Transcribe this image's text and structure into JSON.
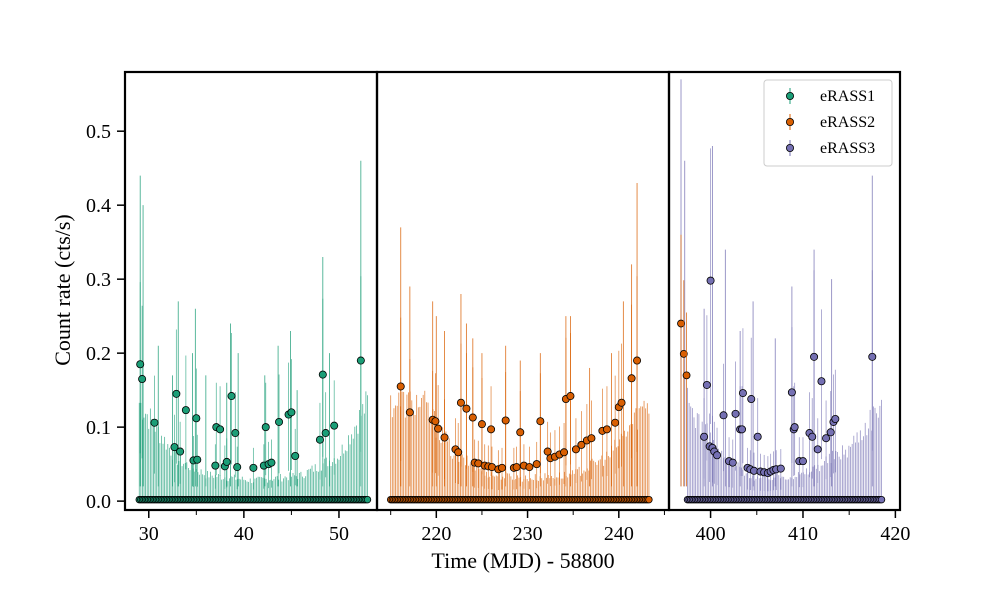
{
  "chart_data": {
    "type": "scatter",
    "title": "",
    "xlabel": "Time (MJD) - 58800",
    "ylabel": "Count rate (cts/s)",
    "ylim": [
      -0.012,
      0.58
    ],
    "y_ticks": [
      0.0,
      0.1,
      0.2,
      0.3,
      0.4,
      0.5
    ],
    "y_tick_labels": [
      "0.0",
      "0.1",
      "0.2",
      "0.3",
      "0.4",
      "0.5"
    ],
    "legend_position": "top-right",
    "error_bars": true,
    "panels": [
      {
        "xlim": [
          27.5,
          54.0
        ],
        "x_ticks": [
          30,
          40,
          50
        ],
        "x_tick_labels": [
          "30",
          "40",
          "50"
        ],
        "series": "eRASS1"
      },
      {
        "xlim": [
          213.5,
          245.5
        ],
        "x_ticks": [
          220,
          230,
          240
        ],
        "x_tick_labels": [
          "220",
          "230",
          "240"
        ],
        "series": "eRASS2"
      },
      {
        "xlim": [
          395.5,
          420.5
        ],
        "x_ticks": [
          400,
          410,
          420
        ],
        "x_tick_labels": [
          "400",
          "410",
          "420"
        ],
        "series": "eRASS3"
      }
    ],
    "series": [
      {
        "name": "eRASS1",
        "color": "#1b9e77",
        "edge_color": "#000000",
        "t_start": 29.0,
        "t_end": 53.0,
        "n_points": 145,
        "points": [
          [
            29.1,
            0.185
          ],
          [
            29.3,
            0.165
          ],
          [
            30.6,
            0.106
          ],
          [
            32.7,
            0.073
          ],
          [
            32.9,
            0.145
          ],
          [
            33.3,
            0.067
          ],
          [
            33.9,
            0.123
          ],
          [
            34.7,
            0.055
          ],
          [
            35.0,
            0.112
          ],
          [
            35.1,
            0.056
          ],
          [
            37.0,
            0.048
          ],
          [
            37.1,
            0.1
          ],
          [
            37.5,
            0.097
          ],
          [
            38.0,
            0.047
          ],
          [
            38.2,
            0.053
          ],
          [
            38.7,
            0.142
          ],
          [
            39.1,
            0.092
          ],
          [
            39.3,
            0.046
          ],
          [
            41.0,
            0.045
          ],
          [
            42.1,
            0.048
          ],
          [
            42.3,
            0.1
          ],
          [
            42.6,
            0.05
          ],
          [
            42.9,
            0.052
          ],
          [
            43.7,
            0.107
          ],
          [
            44.7,
            0.117
          ],
          [
            45.0,
            0.12
          ],
          [
            45.4,
            0.061
          ],
          [
            48.0,
            0.083
          ],
          [
            48.3,
            0.171
          ],
          [
            48.6,
            0.092
          ],
          [
            49.5,
            0.102
          ],
          [
            52.3,
            0.19
          ]
        ],
        "error_top": [
          [
            29.1,
            0.44
          ],
          [
            29.4,
            0.4
          ],
          [
            31.0,
            0.21
          ],
          [
            32.5,
            0.17
          ],
          [
            33.1,
            0.27
          ],
          [
            34.6,
            0.2
          ],
          [
            34.9,
            0.26
          ],
          [
            36.0,
            0.17
          ],
          [
            38.2,
            0.16
          ],
          [
            38.6,
            0.24
          ],
          [
            39.4,
            0.2
          ],
          [
            42.2,
            0.17
          ],
          [
            43.6,
            0.21
          ],
          [
            44.9,
            0.23
          ],
          [
            45.6,
            0.15
          ],
          [
            48.3,
            0.33
          ],
          [
            49.0,
            0.2
          ],
          [
            52.3,
            0.46
          ]
        ],
        "floor_band": [
          [
            29.0,
            0.13
          ],
          [
            33.0,
            0.055
          ],
          [
            36.0,
            0.035
          ],
          [
            41.0,
            0.027
          ],
          [
            46.0,
            0.034
          ],
          [
            50.0,
            0.06
          ],
          [
            53.0,
            0.13
          ]
        ]
      },
      {
        "name": "eRASS2",
        "color": "#d95f02",
        "edge_color": "#000000",
        "t_start": 215.0,
        "t_end": 243.3,
        "n_points": 160,
        "points": [
          [
            216.1,
            0.155
          ],
          [
            217.1,
            0.12
          ],
          [
            219.6,
            0.11
          ],
          [
            219.9,
            0.108
          ],
          [
            220.2,
            0.098
          ],
          [
            220.9,
            0.086
          ],
          [
            222.1,
            0.07
          ],
          [
            222.4,
            0.066
          ],
          [
            222.7,
            0.133
          ],
          [
            223.3,
            0.125
          ],
          [
            224.0,
            0.113
          ],
          [
            224.2,
            0.052
          ],
          [
            224.6,
            0.051
          ],
          [
            225.0,
            0.104
          ],
          [
            225.3,
            0.048
          ],
          [
            225.7,
            0.047
          ],
          [
            226.0,
            0.097
          ],
          [
            226.1,
            0.046
          ],
          [
            226.8,
            0.043
          ],
          [
            227.2,
            0.045
          ],
          [
            227.6,
            0.109
          ],
          [
            228.5,
            0.045
          ],
          [
            228.8,
            0.046
          ],
          [
            229.2,
            0.093
          ],
          [
            229.6,
            0.048
          ],
          [
            230.2,
            0.046
          ],
          [
            231.0,
            0.05
          ],
          [
            231.4,
            0.108
          ],
          [
            232.2,
            0.067
          ],
          [
            232.5,
            0.058
          ],
          [
            233.0,
            0.06
          ],
          [
            233.5,
            0.063
          ],
          [
            234.0,
            0.066
          ],
          [
            234.2,
            0.138
          ],
          [
            234.7,
            0.142
          ],
          [
            235.3,
            0.07
          ],
          [
            235.9,
            0.076
          ],
          [
            236.5,
            0.082
          ],
          [
            237.0,
            0.085
          ],
          [
            238.2,
            0.095
          ],
          [
            238.7,
            0.097
          ],
          [
            239.6,
            0.106
          ],
          [
            240.0,
            0.127
          ],
          [
            240.3,
            0.133
          ],
          [
            241.4,
            0.166
          ],
          [
            242.0,
            0.19
          ]
        ],
        "error_top": [
          [
            216.1,
            0.37
          ],
          [
            217.1,
            0.29
          ],
          [
            219.6,
            0.27
          ],
          [
            220.0,
            0.25
          ],
          [
            220.9,
            0.23
          ],
          [
            222.7,
            0.28
          ],
          [
            223.3,
            0.24
          ],
          [
            224.0,
            0.22
          ],
          [
            225.0,
            0.2
          ],
          [
            227.6,
            0.21
          ],
          [
            229.2,
            0.19
          ],
          [
            231.4,
            0.2
          ],
          [
            234.2,
            0.25
          ],
          [
            234.7,
            0.25
          ],
          [
            236.8,
            0.18
          ],
          [
            239.2,
            0.2
          ],
          [
            240.5,
            0.27
          ],
          [
            241.4,
            0.32
          ],
          [
            242.0,
            0.43
          ]
        ],
        "floor_band": [
          [
            218.5,
            0.13
          ],
          [
            222.0,
            0.06
          ],
          [
            226.0,
            0.035
          ],
          [
            230.0,
            0.03
          ],
          [
            235.0,
            0.035
          ],
          [
            239.0,
            0.06
          ],
          [
            243.0,
            0.13
          ]
        ]
      },
      {
        "name": "eRASS3",
        "color": "#7570b3",
        "edge_color": "#000000",
        "t_start": 397.5,
        "t_end": 418.5,
        "n_points": 120,
        "orange_points": [
          [
            396.8,
            0.24
          ],
          [
            397.1,
            0.199
          ],
          [
            397.4,
            0.17
          ]
        ],
        "points": [
          [
            399.3,
            0.087
          ],
          [
            399.6,
            0.157
          ],
          [
            399.9,
            0.074
          ],
          [
            400.0,
            0.298
          ],
          [
            400.2,
            0.072
          ],
          [
            400.4,
            0.067
          ],
          [
            400.7,
            0.062
          ],
          [
            401.4,
            0.116
          ],
          [
            402.0,
            0.054
          ],
          [
            402.4,
            0.052
          ],
          [
            402.7,
            0.118
          ],
          [
            403.2,
            0.097
          ],
          [
            403.4,
            0.097
          ],
          [
            403.5,
            0.146
          ],
          [
            404.0,
            0.045
          ],
          [
            404.3,
            0.043
          ],
          [
            404.4,
            0.138
          ],
          [
            404.7,
            0.041
          ],
          [
            405.1,
            0.087
          ],
          [
            405.4,
            0.04
          ],
          [
            405.8,
            0.039
          ],
          [
            406.2,
            0.038
          ],
          [
            406.5,
            0.04
          ],
          [
            406.8,
            0.042
          ],
          [
            407.1,
            0.043
          ],
          [
            407.6,
            0.044
          ],
          [
            408.8,
            0.147
          ],
          [
            409.0,
            0.097
          ],
          [
            409.1,
            0.1
          ],
          [
            409.6,
            0.054
          ],
          [
            410.0,
            0.054
          ],
          [
            410.7,
            0.092
          ],
          [
            411.0,
            0.087
          ],
          [
            411.2,
            0.195
          ],
          [
            411.6,
            0.07
          ],
          [
            412.0,
            0.162
          ],
          [
            412.5,
            0.085
          ],
          [
            413.0,
            0.093
          ],
          [
            413.3,
            0.107
          ],
          [
            413.5,
            0.111
          ],
          [
            417.5,
            0.195
          ]
        ],
        "error_top": [
          [
            396.8,
            0.57
          ],
          [
            397.2,
            0.46
          ],
          [
            399.3,
            0.26
          ],
          [
            400.2,
            0.48
          ],
          [
            401.6,
            0.34
          ],
          [
            403.2,
            0.23
          ],
          [
            404.6,
            0.27
          ],
          [
            407.0,
            0.22
          ],
          [
            408.8,
            0.29
          ],
          [
            411.2,
            0.34
          ],
          [
            413.1,
            0.3
          ],
          [
            417.5,
            0.44
          ]
        ],
        "floor_band": [
          [
            397.5,
            0.13
          ],
          [
            401.0,
            0.06
          ],
          [
            405.0,
            0.03
          ],
          [
            410.0,
            0.035
          ],
          [
            415.0,
            0.07
          ],
          [
            418.5,
            0.13
          ]
        ]
      }
    ]
  }
}
